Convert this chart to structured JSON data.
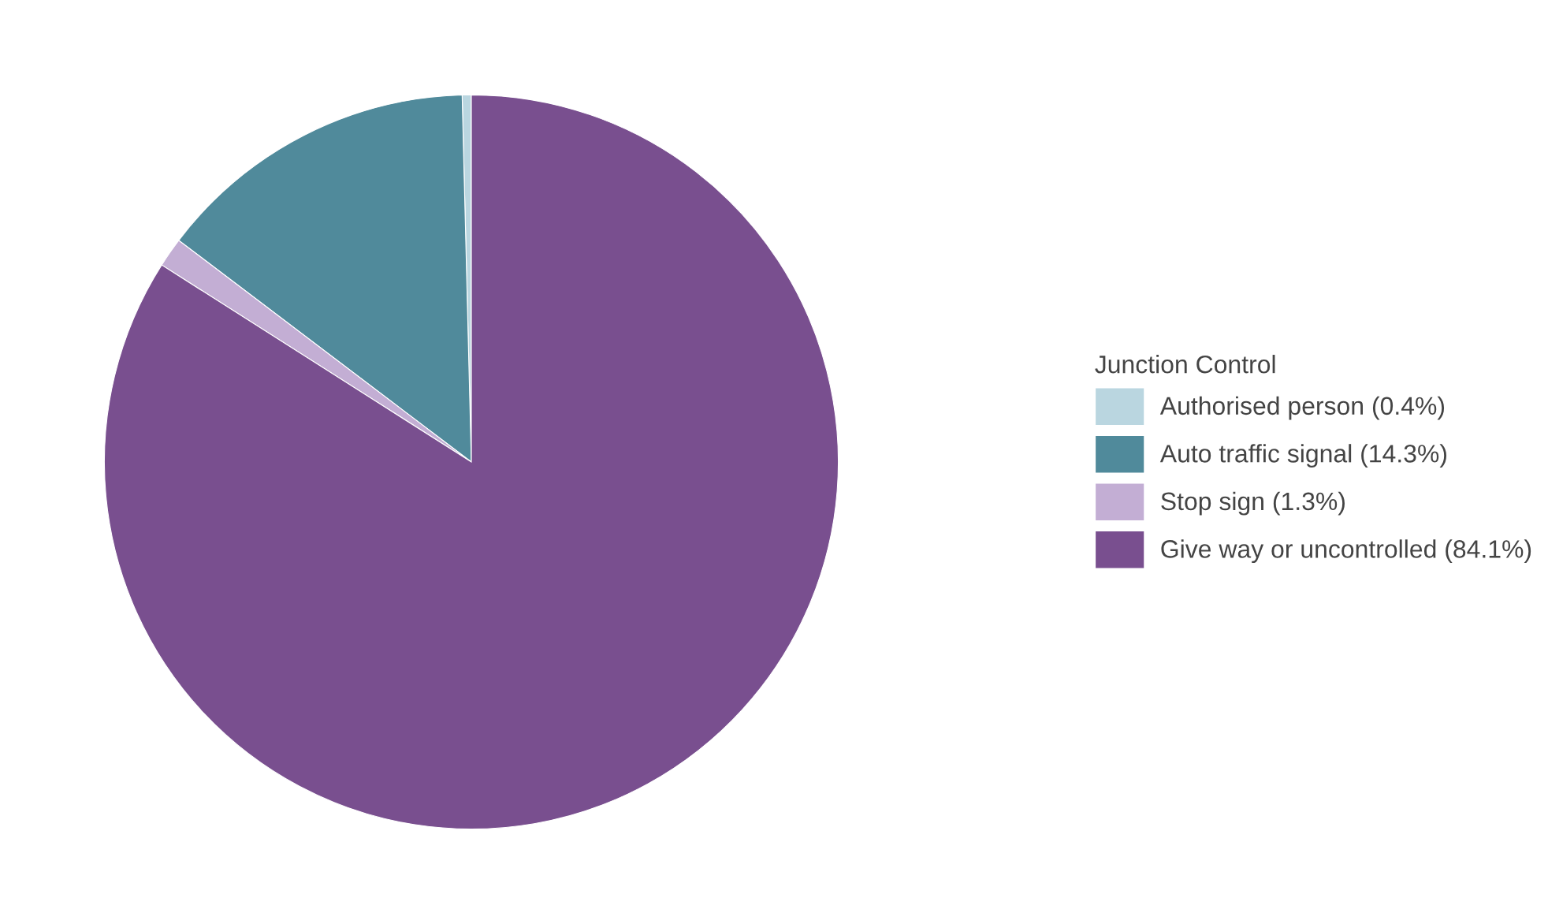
{
  "chart_data": {
    "type": "pie",
    "legend_title": "Junction Control",
    "categories": [
      "Authorised person (0.4%)",
      "Auto traffic signal (14.3%)",
      "Stop sign (1.3%)",
      "Give way or uncontrolled (84.1%)"
    ],
    "values": [
      0.4,
      14.3,
      1.3,
      84.1
    ],
    "colors": [
      "#bad6e0",
      "#508a9b",
      "#c3aed4",
      "#794f8f"
    ],
    "legend": "right"
  }
}
